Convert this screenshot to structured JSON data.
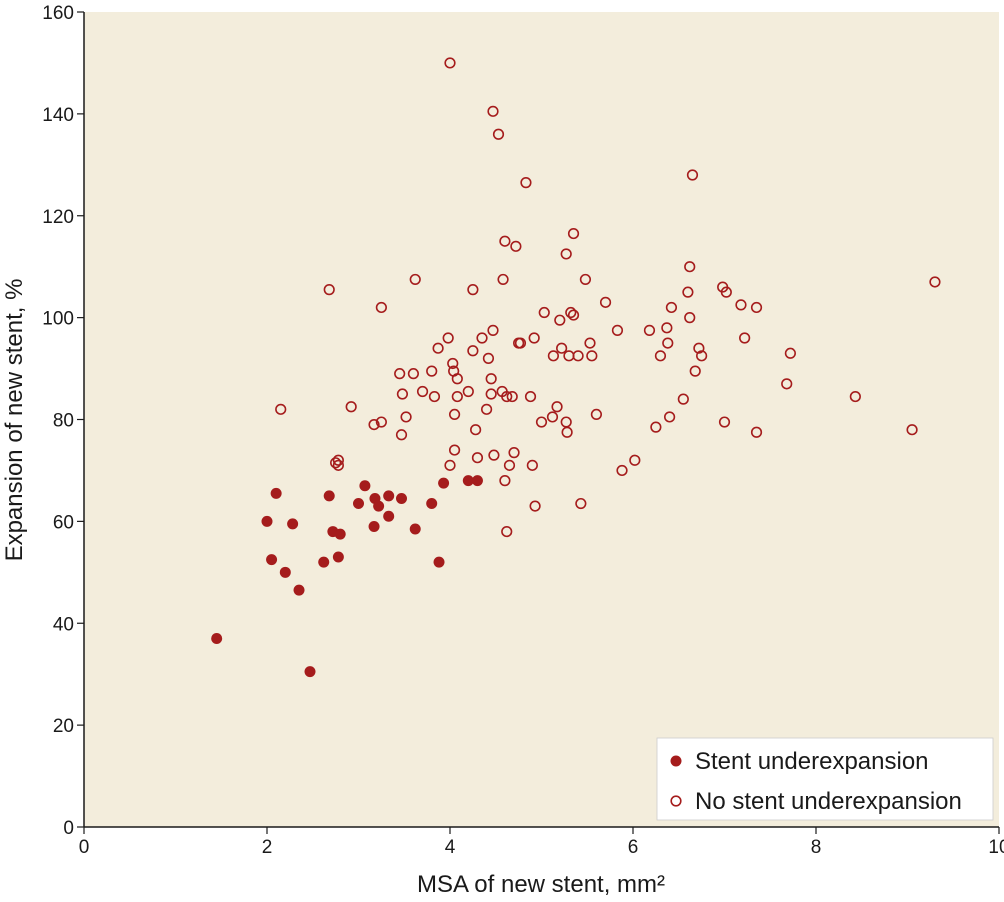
{
  "chart_data": {
    "type": "scatter",
    "xlabel": "MSA of new stent, mm²",
    "ylabel": "Expansion of new stent, %",
    "xlim": [
      0,
      10
    ],
    "ylim": [
      0,
      160
    ],
    "x_ticks": [
      0,
      2,
      4,
      6,
      8,
      10
    ],
    "y_ticks": [
      0,
      20,
      40,
      60,
      80,
      100,
      120,
      140,
      160
    ],
    "grid": false,
    "legend_position": "bottom-right",
    "colors": {
      "plot_background": "#f3eddc",
      "marker": "#a51c1c"
    },
    "series": [
      {
        "name": "Stent underexpansion",
        "marker": "filled-circle",
        "points": [
          [
            1.45,
            37
          ],
          [
            2.0,
            60
          ],
          [
            2.05,
            52.5
          ],
          [
            2.1,
            65.5
          ],
          [
            2.2,
            50
          ],
          [
            2.28,
            59.5
          ],
          [
            2.35,
            46.5
          ],
          [
            2.47,
            30.5
          ],
          [
            2.62,
            52
          ],
          [
            2.68,
            65
          ],
          [
            2.72,
            58
          ],
          [
            2.78,
            53
          ],
          [
            2.8,
            57.5
          ],
          [
            3.0,
            63.5
          ],
          [
            3.07,
            67
          ],
          [
            3.17,
            59
          ],
          [
            3.18,
            64.5
          ],
          [
            3.22,
            63
          ],
          [
            3.33,
            65
          ],
          [
            3.33,
            61
          ],
          [
            3.47,
            64.5
          ],
          [
            3.62,
            58.5
          ],
          [
            3.8,
            63.5
          ],
          [
            3.88,
            52
          ],
          [
            3.93,
            67.5
          ],
          [
            4.2,
            68
          ],
          [
            4.3,
            68
          ]
        ]
      },
      {
        "name": "No stent underexpansion",
        "marker": "open-circle",
        "points": [
          [
            2.15,
            82
          ],
          [
            2.68,
            105.5
          ],
          [
            2.75,
            71.5
          ],
          [
            2.78,
            72
          ],
          [
            2.78,
            71
          ],
          [
            2.92,
            82.5
          ],
          [
            3.17,
            79
          ],
          [
            3.25,
            79.5
          ],
          [
            3.25,
            102
          ],
          [
            3.45,
            89
          ],
          [
            3.47,
            77
          ],
          [
            3.48,
            85
          ],
          [
            3.52,
            80.5
          ],
          [
            3.6,
            89
          ],
          [
            3.62,
            107.5
          ],
          [
            3.7,
            85.5
          ],
          [
            3.8,
            89.5
          ],
          [
            3.83,
            84.5
          ],
          [
            3.87,
            94
          ],
          [
            3.98,
            96
          ],
          [
            4.0,
            71
          ],
          [
            4.0,
            150
          ],
          [
            4.03,
            91
          ],
          [
            4.04,
            89.5
          ],
          [
            4.05,
            74
          ],
          [
            4.05,
            81
          ],
          [
            4.08,
            84.5
          ],
          [
            4.08,
            88
          ],
          [
            4.2,
            85.5
          ],
          [
            4.25,
            105.5
          ],
          [
            4.25,
            93.5
          ],
          [
            4.28,
            78
          ],
          [
            4.3,
            72.5
          ],
          [
            4.35,
            96
          ],
          [
            4.4,
            82
          ],
          [
            4.42,
            92
          ],
          [
            4.45,
            85
          ],
          [
            4.45,
            88
          ],
          [
            4.47,
            97.5
          ],
          [
            4.47,
            140.5
          ],
          [
            4.48,
            73
          ],
          [
            4.53,
            136
          ],
          [
            4.57,
            85.5
          ],
          [
            4.58,
            107.5
          ],
          [
            4.6,
            115
          ],
          [
            4.6,
            68
          ],
          [
            4.62,
            58
          ],
          [
            4.62,
            84.5
          ],
          [
            4.65,
            71
          ],
          [
            4.68,
            84.5
          ],
          [
            4.7,
            73.5
          ],
          [
            4.72,
            114
          ],
          [
            4.75,
            95
          ],
          [
            4.77,
            95
          ],
          [
            4.83,
            126.5
          ],
          [
            4.88,
            84.5
          ],
          [
            4.9,
            71
          ],
          [
            4.92,
            96
          ],
          [
            4.93,
            63
          ],
          [
            5.0,
            79.5
          ],
          [
            5.03,
            101
          ],
          [
            5.12,
            80.5
          ],
          [
            5.13,
            92.5
          ],
          [
            5.17,
            82.5
          ],
          [
            5.2,
            99.5
          ],
          [
            5.22,
            94
          ],
          [
            5.27,
            79.5
          ],
          [
            5.27,
            112.5
          ],
          [
            5.28,
            77.5
          ],
          [
            5.3,
            92.5
          ],
          [
            5.32,
            101
          ],
          [
            5.35,
            100.5
          ],
          [
            5.35,
            116.5
          ],
          [
            5.4,
            92.5
          ],
          [
            5.43,
            63.5
          ],
          [
            5.48,
            107.5
          ],
          [
            5.53,
            95
          ],
          [
            5.55,
            92.5
          ],
          [
            5.6,
            81
          ],
          [
            5.7,
            103
          ],
          [
            5.83,
            97.5
          ],
          [
            5.88,
            70
          ],
          [
            6.02,
            72
          ],
          [
            6.18,
            97.5
          ],
          [
            6.25,
            78.5
          ],
          [
            6.3,
            92.5
          ],
          [
            6.37,
            98
          ],
          [
            6.38,
            95
          ],
          [
            6.4,
            80.5
          ],
          [
            6.42,
            102
          ],
          [
            6.55,
            84
          ],
          [
            6.6,
            105
          ],
          [
            6.62,
            110
          ],
          [
            6.62,
            100
          ],
          [
            6.65,
            128
          ],
          [
            6.68,
            89.5
          ],
          [
            6.72,
            94
          ],
          [
            6.75,
            92.5
          ],
          [
            6.98,
            106
          ],
          [
            7.0,
            79.5
          ],
          [
            7.02,
            105
          ],
          [
            7.18,
            102.5
          ],
          [
            7.22,
            96
          ],
          [
            7.35,
            77.5
          ],
          [
            7.35,
            102
          ],
          [
            7.68,
            87
          ],
          [
            7.72,
            93
          ],
          [
            8.43,
            84.5
          ],
          [
            9.05,
            78
          ],
          [
            9.3,
            107
          ]
        ]
      }
    ]
  }
}
